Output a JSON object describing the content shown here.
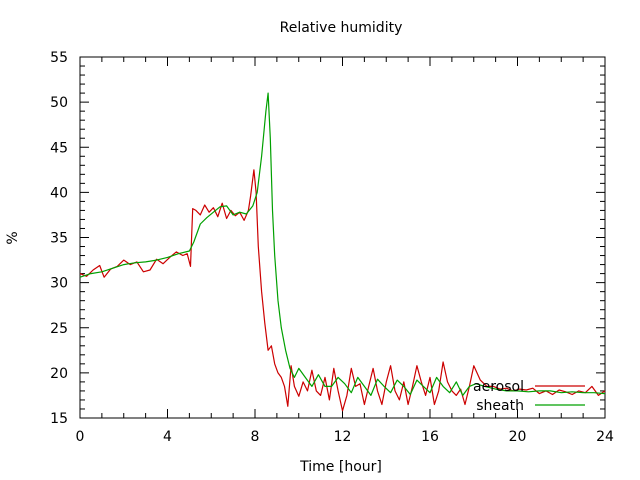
{
  "chart_data": {
    "type": "line",
    "title": "Relative humidity",
    "xlabel": "Time [hour]",
    "ylabel": "%",
    "xlim": [
      0,
      24
    ],
    "ylim": [
      15,
      55
    ],
    "xticks": [
      0,
      4,
      8,
      12,
      16,
      20,
      24
    ],
    "yticks": [
      15,
      20,
      25,
      30,
      35,
      40,
      45,
      50,
      55
    ],
    "grid": false,
    "legend_position": "bottom-right",
    "series": [
      {
        "name": "aerosol",
        "color": "#cc0000",
        "x": [
          0,
          0.3,
          0.6,
          0.9,
          1.1,
          1.4,
          1.7,
          2.0,
          2.3,
          2.6,
          2.9,
          3.2,
          3.5,
          3.8,
          4.1,
          4.4,
          4.7,
          4.9,
          5.05,
          5.15,
          5.3,
          5.5,
          5.7,
          5.9,
          6.1,
          6.3,
          6.5,
          6.7,
          6.9,
          7.1,
          7.3,
          7.5,
          7.7,
          7.8,
          7.95,
          8.05,
          8.15,
          8.3,
          8.45,
          8.6,
          8.75,
          8.9,
          9.05,
          9.2,
          9.35,
          9.5,
          9.65,
          9.8,
          10.0,
          10.2,
          10.4,
          10.6,
          10.8,
          11.0,
          11.2,
          11.4,
          11.6,
          11.8,
          12.0,
          12.2,
          12.4,
          12.6,
          12.8,
          13.0,
          13.2,
          13.4,
          13.6,
          13.8,
          14.0,
          14.2,
          14.4,
          14.6,
          14.8,
          15.0,
          15.2,
          15.4,
          15.6,
          15.8,
          16.0,
          16.2,
          16.4,
          16.6,
          16.8,
          17.0,
          17.2,
          17.4,
          17.6,
          17.8,
          18.0,
          18.3,
          18.6,
          18.9,
          19.2,
          19.5,
          19.8,
          20.1,
          20.4,
          20.7,
          21.0,
          21.3,
          21.6,
          21.9,
          22.2,
          22.5,
          22.8,
          23.1,
          23.4,
          23.7,
          24.0
        ],
        "y": [
          31.0,
          30.7,
          31.4,
          31.9,
          30.6,
          31.5,
          31.8,
          32.5,
          32.0,
          32.3,
          31.2,
          31.4,
          32.6,
          32.1,
          32.8,
          33.4,
          33.0,
          33.2,
          31.8,
          38.2,
          38.0,
          37.5,
          38.6,
          37.8,
          38.3,
          37.3,
          38.8,
          37.1,
          38.0,
          37.4,
          37.8,
          36.9,
          38.0,
          39.6,
          42.5,
          40.0,
          34.0,
          29.0,
          25.5,
          22.5,
          23.0,
          21.0,
          20.0,
          19.5,
          18.5,
          16.3,
          20.8,
          18.5,
          17.4,
          19.0,
          18.0,
          20.3,
          18.0,
          17.5,
          19.5,
          17.0,
          20.5,
          18.0,
          15.8,
          17.5,
          20.5,
          18.5,
          18.8,
          16.5,
          18.5,
          20.5,
          18.0,
          16.5,
          19.0,
          20.8,
          18.0,
          17.0,
          19.0,
          16.5,
          18.5,
          20.8,
          19.0,
          17.5,
          19.5,
          16.5,
          18.0,
          21.2,
          19.0,
          18.0,
          17.5,
          18.2,
          16.5,
          18.5,
          20.8,
          19.2,
          18.5,
          18.5,
          18.2,
          18.3,
          18.0,
          18.2,
          18.1,
          18.3,
          17.7,
          18.0,
          17.6,
          18.1,
          17.9,
          17.6,
          18.0,
          17.8,
          18.5,
          17.5,
          18.0
        ]
      },
      {
        "name": "sheath",
        "color": "#00a000",
        "x": [
          0,
          0.5,
          1.0,
          1.5,
          2.0,
          2.5,
          3.0,
          3.5,
          4.0,
          4.5,
          5.0,
          5.2,
          5.5,
          5.8,
          6.1,
          6.4,
          6.7,
          7.0,
          7.3,
          7.6,
          7.9,
          8.1,
          8.3,
          8.5,
          8.6,
          8.7,
          8.8,
          8.9,
          9.05,
          9.2,
          9.4,
          9.6,
          9.8,
          10.0,
          10.3,
          10.6,
          10.9,
          11.2,
          11.5,
          11.8,
          12.1,
          12.4,
          12.7,
          13.0,
          13.3,
          13.6,
          13.9,
          14.2,
          14.5,
          14.8,
          15.1,
          15.4,
          15.7,
          16.0,
          16.3,
          16.6,
          16.9,
          17.2,
          17.5,
          17.8,
          18.1,
          18.5,
          19.0,
          19.5,
          20.0,
          20.5,
          21.0,
          21.5,
          22.0,
          22.5,
          23.0,
          23.5,
          24.0
        ],
        "y": [
          30.6,
          31.0,
          31.2,
          31.6,
          32.0,
          32.2,
          32.3,
          32.5,
          32.8,
          33.2,
          33.5,
          34.5,
          36.5,
          37.2,
          37.8,
          38.4,
          38.5,
          37.5,
          37.8,
          37.6,
          38.5,
          40.0,
          44.0,
          49.0,
          51.0,
          46.0,
          38.0,
          33.0,
          28.0,
          25.0,
          22.5,
          20.5,
          19.5,
          20.5,
          19.5,
          18.5,
          19.8,
          18.5,
          18.5,
          19.5,
          18.8,
          17.8,
          19.5,
          18.5,
          17.5,
          19.3,
          18.5,
          17.8,
          19.2,
          18.5,
          17.6,
          19.2,
          18.5,
          17.8,
          19.5,
          18.5,
          17.8,
          19.0,
          17.5,
          18.5,
          18.8,
          18.5,
          18.2,
          18.0,
          18.0,
          17.9,
          18.0,
          18.0,
          17.8,
          17.9,
          17.8,
          17.8,
          17.7
        ]
      }
    ]
  }
}
